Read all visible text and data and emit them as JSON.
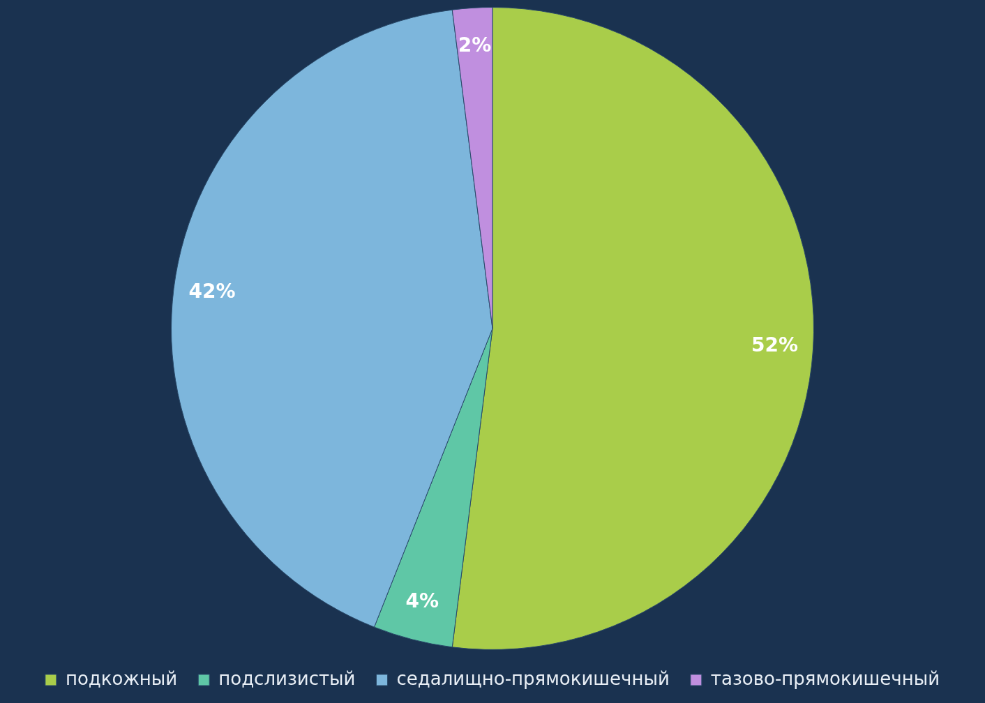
{
  "chart_data": {
    "type": "pie",
    "categories": [
      "подкожный",
      "подслизистый",
      "седалищно-прямокишечный",
      "тазово-прямокишечный"
    ],
    "values": [
      52,
      4,
      42,
      2
    ],
    "colors": [
      "#a9cd4a",
      "#5fc7a6",
      "#7db6dc",
      "#c08fdf"
    ],
    "value_labels": [
      "52%",
      "4%",
      "42%",
      "2%"
    ],
    "legend": "bottom"
  }
}
